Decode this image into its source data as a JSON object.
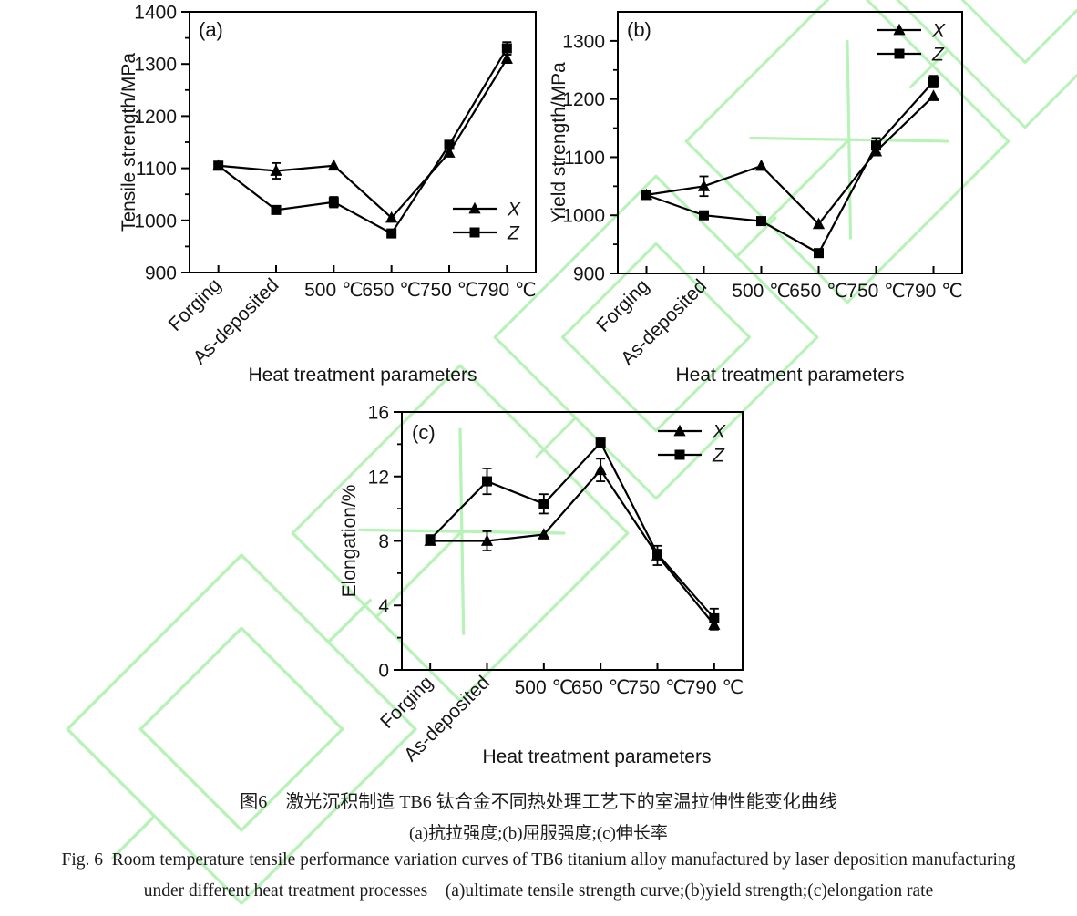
{
  "page": {
    "background": "#ffffff",
    "watermark_color": "#b7f2b7",
    "watermark_name": "cnki-logo-watermark",
    "line_color": "#000000",
    "text_color": "#141414"
  },
  "figure": {
    "caption_zh_line1": "图6　激光沉积制造 TB6 钛合金不同热处理工艺下的室温拉伸性能变化曲线",
    "caption_zh_line2": "(a)抗拉强度;(b)屈服强度;(c)伸长率",
    "caption_en_line1": "Fig. 6  Room temperature tensile performance variation curves of TB6 titanium alloy manufactured by laser deposition manufacturing",
    "caption_en_line2": "under different heat treatment processes    (a)ultimate tensile strength curve;(b)yield strength;(c)elongation rate"
  },
  "chart_data": [
    {
      "id": "a",
      "type": "line",
      "panel_label": "(a)",
      "ylabel": "Tensile strength/MPa",
      "xlabel": "Heat treatment parameters",
      "categories": [
        "Forging",
        "As-deposited",
        "500 ℃",
        "650 ℃",
        "750 ℃",
        "790 ℃"
      ],
      "rotated_category_count": 2,
      "ylim": [
        900,
        1400
      ],
      "yticks": [
        900,
        1000,
        1100,
        1200,
        1300,
        1400
      ],
      "yminor": 50,
      "grid": false,
      "legend_position": "center-right",
      "legend": [
        "X",
        "Z"
      ],
      "series": [
        {
          "name": "X",
          "marker": "triangle",
          "values": [
            1105,
            1095,
            1105,
            1005,
            1130,
            1310
          ],
          "errors": [
            0,
            15,
            0,
            0,
            0,
            8
          ]
        },
        {
          "name": "Z",
          "marker": "square",
          "values": [
            1105,
            1020,
            1035,
            975,
            1145,
            1330
          ],
          "errors": [
            0,
            0,
            10,
            0,
            0,
            12
          ]
        }
      ]
    },
    {
      "id": "b",
      "type": "line",
      "panel_label": "(b)",
      "ylabel": "Yield strength/MPa",
      "xlabel": "Heat treatment parameters",
      "categories": [
        "Forging",
        "As-deposited",
        "500 ℃",
        "650 ℃",
        "750 ℃",
        "790 ℃"
      ],
      "rotated_category_count": 2,
      "ylim": [
        900,
        1350
      ],
      "yticks": [
        900,
        1000,
        1100,
        1200,
        1300
      ],
      "yminor": 50,
      "grid": false,
      "legend_position": "top-right",
      "legend": [
        "X",
        "Z"
      ],
      "series": [
        {
          "name": "X",
          "marker": "triangle",
          "values": [
            1035,
            1050,
            1085,
            985,
            1110,
            1205
          ],
          "errors": [
            0,
            17,
            0,
            0,
            0,
            0
          ]
        },
        {
          "name": "Z",
          "marker": "square",
          "values": [
            1035,
            1000,
            990,
            935,
            1120,
            1230
          ],
          "errors": [
            0,
            0,
            0,
            0,
            13,
            10
          ]
        }
      ]
    },
    {
      "id": "c",
      "type": "line",
      "panel_label": "(c)",
      "ylabel": "Elongation/%",
      "xlabel": "Heat treatment parameters",
      "categories": [
        "Forging",
        "As-deposited",
        "500 ℃",
        "650 ℃",
        "750 ℃",
        "790 ℃"
      ],
      "rotated_category_count": 2,
      "ylim": [
        0,
        16
      ],
      "yticks": [
        0,
        4,
        8,
        12,
        16
      ],
      "yminor": 2,
      "grid": false,
      "legend_position": "top-right",
      "legend": [
        "X",
        "Z"
      ],
      "series": [
        {
          "name": "X",
          "marker": "triangle",
          "values": [
            8.0,
            8.0,
            8.4,
            12.4,
            7.1,
            2.8
          ],
          "errors": [
            0,
            0.6,
            0,
            0.7,
            0.6,
            0.3
          ]
        },
        {
          "name": "Z",
          "marker": "square",
          "values": [
            8.1,
            11.7,
            10.3,
            14.1,
            7.2,
            3.2
          ],
          "errors": [
            0,
            0.8,
            0.6,
            0,
            0,
            0.6
          ]
        }
      ]
    }
  ]
}
